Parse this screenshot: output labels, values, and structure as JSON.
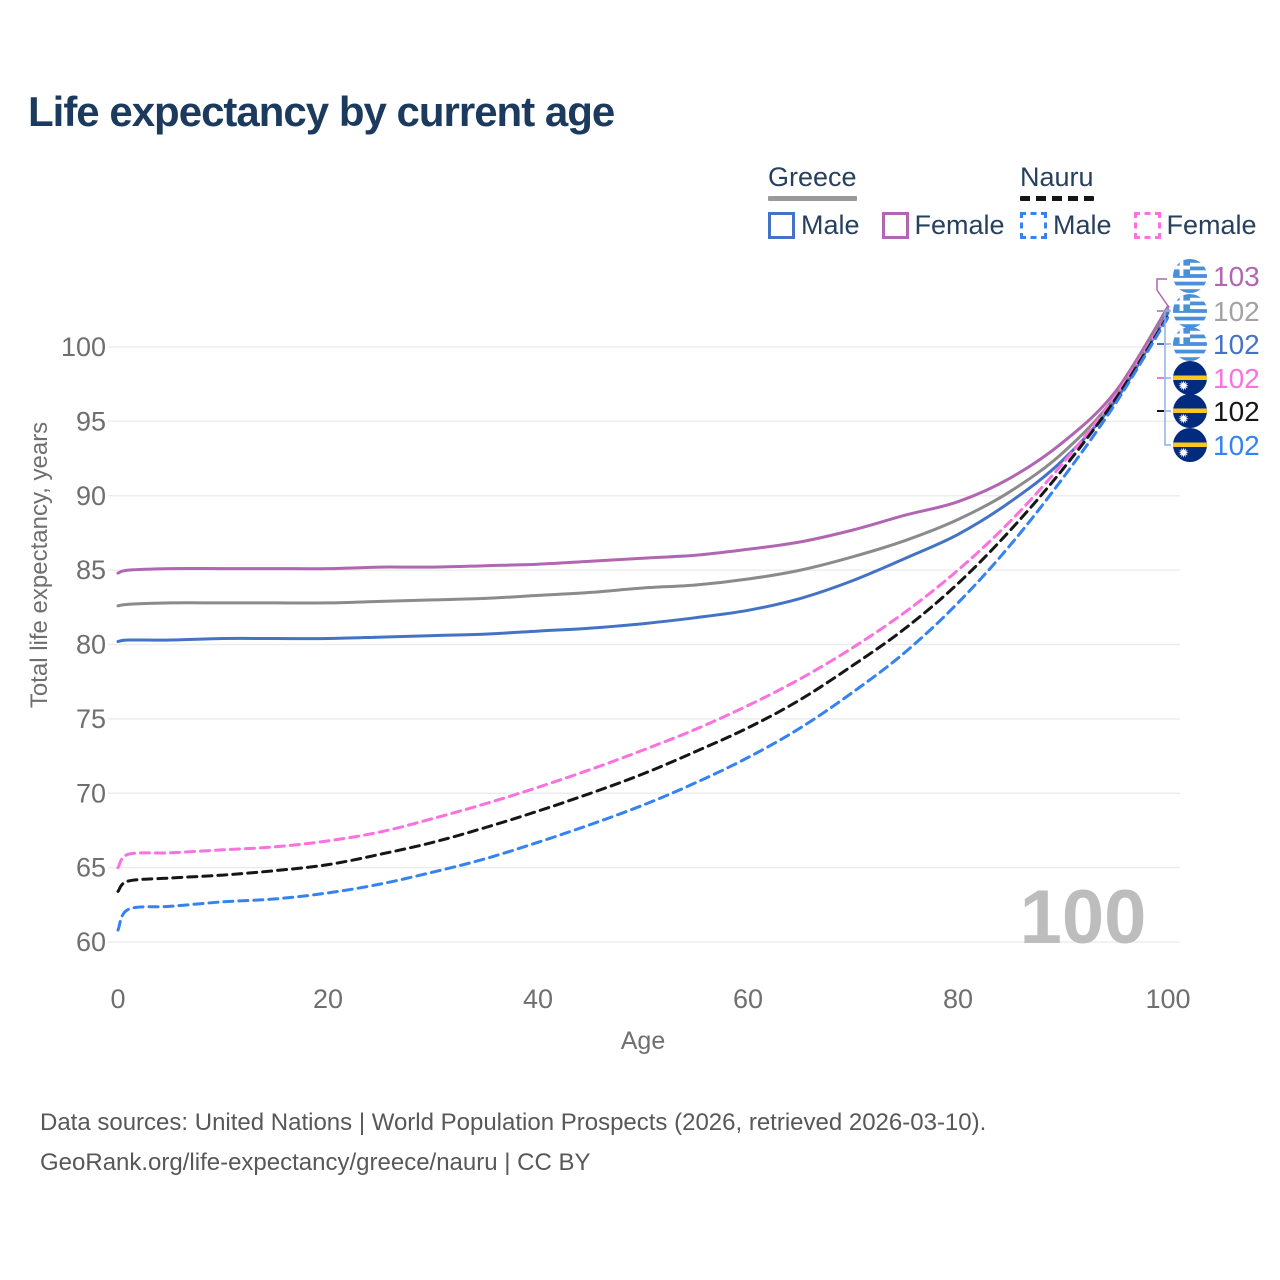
{
  "title": "Life expectancy by current age",
  "colors": {
    "title_text": "#1c3a5e",
    "legend_text": "#27405e",
    "axis_text": "#6f6f6f",
    "gridline": "#ededed",
    "watermark": "#bdbdbd",
    "footer_text": "#585858",
    "leader_bracket": "#8fb0e8",
    "greece_flag_blue": "#4a90d9",
    "nauru_flag_navy": "#002b7f",
    "nauru_flag_yellow": "#ffc61e"
  },
  "legend": {
    "groups": [
      {
        "name": "Greece",
        "line_style": "solid",
        "underline_color": "#9a9a9a",
        "items": [
          {
            "label": "Male",
            "color": "#4473c5",
            "dashed": false
          },
          {
            "label": "Female",
            "color": "#b166b1",
            "dashed": false
          }
        ]
      },
      {
        "name": "Nauru",
        "line_style": "dashed",
        "underline_color": "#161616",
        "items": [
          {
            "label": "Male",
            "color": "#3583f2",
            "dashed": true
          },
          {
            "label": "Female",
            "color": "#fb71de",
            "dashed": true
          }
        ]
      }
    ]
  },
  "chart_data": {
    "type": "line",
    "title": "Life expectancy by current age",
    "xlabel": "Age",
    "ylabel": "Total life expectancy, years",
    "xlim": [
      0,
      100
    ],
    "ylim": [
      58.5,
      103.5
    ],
    "x_ticks": [
      0,
      20,
      40,
      60,
      80,
      100
    ],
    "y_ticks": [
      60,
      65,
      70,
      75,
      80,
      85,
      90,
      95,
      100
    ],
    "grid": "horizontal-only",
    "hover_age_watermark": "100",
    "ages": [
      0,
      1,
      5,
      10,
      15,
      20,
      25,
      30,
      35,
      40,
      45,
      50,
      55,
      60,
      65,
      70,
      75,
      80,
      85,
      90,
      95,
      100
    ],
    "series": [
      {
        "name": "Greece Female",
        "country": "Greece",
        "sex": "Female",
        "color": "#b166b1",
        "dashed": false,
        "values": [
          84.8,
          85.0,
          85.1,
          85.1,
          85.1,
          85.1,
          85.2,
          85.2,
          85.3,
          85.4,
          85.6,
          85.8,
          86.0,
          86.4,
          86.9,
          87.7,
          88.7,
          89.6,
          91.2,
          93.6,
          97.0,
          102.7
        ]
      },
      {
        "name": "Greece Both sexes",
        "country": "Greece",
        "sex": "Both",
        "color": "#8b8b8b",
        "dashed": false,
        "values": [
          82.6,
          82.7,
          82.8,
          82.8,
          82.8,
          82.8,
          82.9,
          83.0,
          83.1,
          83.3,
          83.5,
          83.8,
          84.0,
          84.4,
          85.0,
          85.9,
          87.0,
          88.4,
          90.3,
          92.9,
          96.7,
          102.5
        ]
      },
      {
        "name": "Greece Male",
        "country": "Greece",
        "sex": "Male",
        "color": "#4473c5",
        "dashed": false,
        "values": [
          80.2,
          80.3,
          80.3,
          80.4,
          80.4,
          80.4,
          80.5,
          80.6,
          80.7,
          80.9,
          81.1,
          81.4,
          81.8,
          82.3,
          83.1,
          84.3,
          85.8,
          87.4,
          89.6,
          92.4,
          96.4,
          102.3
        ]
      },
      {
        "name": "Nauru Female",
        "country": "Nauru",
        "sex": "Female",
        "color": "#fb71de",
        "dashed": true,
        "values": [
          65.0,
          65.9,
          66.0,
          66.2,
          66.4,
          66.8,
          67.4,
          68.3,
          69.3,
          70.4,
          71.6,
          72.9,
          74.3,
          75.9,
          77.7,
          79.8,
          82.2,
          85.0,
          88.3,
          92.2,
          96.7,
          102.2
        ]
      },
      {
        "name": "Nauru Both sexes",
        "country": "Nauru",
        "sex": "Both",
        "color": "#161616",
        "dashed": true,
        "values": [
          63.4,
          64.1,
          64.3,
          64.5,
          64.8,
          65.2,
          65.9,
          66.7,
          67.7,
          68.8,
          70.0,
          71.3,
          72.8,
          74.4,
          76.3,
          78.6,
          81.1,
          84.1,
          87.7,
          91.8,
          96.5,
          102.1
        ]
      },
      {
        "name": "Nauru Male",
        "country": "Nauru",
        "sex": "Male",
        "color": "#3583f2",
        "dashed": true,
        "values": [
          60.8,
          62.2,
          62.4,
          62.7,
          62.9,
          63.3,
          63.9,
          64.7,
          65.6,
          66.7,
          67.9,
          69.2,
          70.7,
          72.4,
          74.4,
          76.8,
          79.5,
          82.8,
          86.7,
          91.2,
          96.2,
          102.0
        ]
      }
    ],
    "end_labels": [
      {
        "country": "Greece",
        "value": "103",
        "color": "#b166b1"
      },
      {
        "country": "Greece",
        "value": "102",
        "color": "#a3a3a3"
      },
      {
        "country": "Greece",
        "value": "102",
        "color": "#4473c5"
      },
      {
        "country": "Nauru",
        "value": "102",
        "color": "#fb71de"
      },
      {
        "country": "Nauru",
        "value": "102",
        "color": "#161616"
      },
      {
        "country": "Nauru",
        "value": "102",
        "color": "#3583f2"
      }
    ]
  },
  "footer": {
    "line1": "Data sources: United Nations | World Population Prospects (2026, retrieved 2026-03-10).",
    "line2": "GeoRank.org/life-expectancy/greece/nauru | CC BY"
  }
}
